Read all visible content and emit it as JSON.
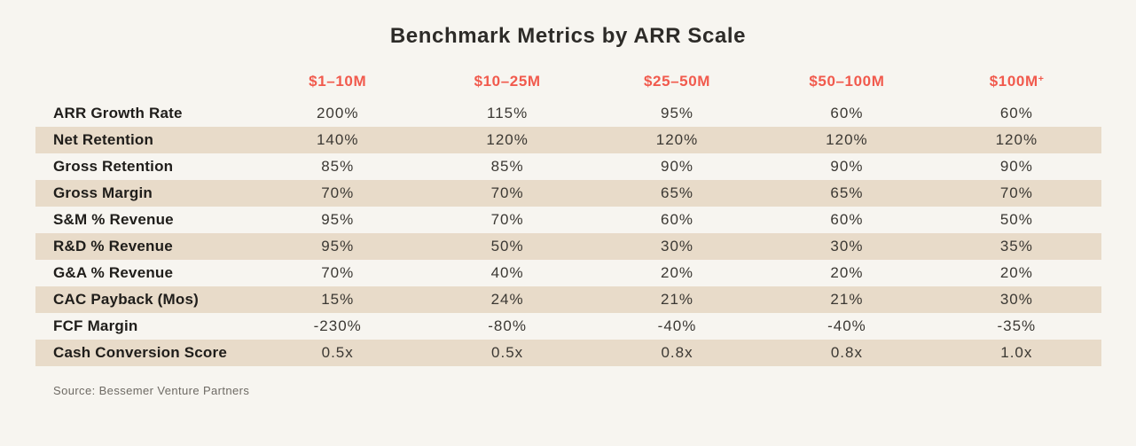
{
  "title": "Benchmark Metrics by ARR Scale",
  "source_note": "Source: Bessemer Venture Partners",
  "colors": {
    "background": "#f7f5f0",
    "row_band": "#e8dbc9",
    "column_header_accent": "#f15a4d",
    "title_text": "#2d2b28",
    "metric_label_text": "#1f1d1a",
    "value_text": "#3b3833",
    "source_text": "#6e6a64"
  },
  "header": {
    "cells": [
      {
        "label": "$1–10M",
        "sup": ""
      },
      {
        "label": "$10–25M",
        "sup": ""
      },
      {
        "label": "$25–50M",
        "sup": ""
      },
      {
        "label": "$50–100M",
        "sup": ""
      },
      {
        "label": "$100M",
        "sup": "+"
      }
    ]
  },
  "chart_data": {
    "type": "table",
    "title": "Benchmark Metrics by ARR Scale",
    "columns": [
      "$1–10M",
      "$10–25M",
      "$25–50M",
      "$50–100M",
      "$100M+"
    ],
    "rows": [
      {
        "metric": "ARR Growth Rate",
        "values": [
          "200%",
          "115%",
          "95%",
          "60%",
          "60%"
        ]
      },
      {
        "metric": "Net Retention",
        "values": [
          "140%",
          "120%",
          "120%",
          "120%",
          "120%"
        ]
      },
      {
        "metric": "Gross Retention",
        "values": [
          "85%",
          "85%",
          "90%",
          "90%",
          "90%"
        ]
      },
      {
        "metric": "Gross Margin",
        "values": [
          "70%",
          "70%",
          "65%",
          "65%",
          "70%"
        ]
      },
      {
        "metric": "S&M % Revenue",
        "values": [
          "95%",
          "70%",
          "60%",
          "60%",
          "50%"
        ]
      },
      {
        "metric": "R&D % Revenue",
        "values": [
          "95%",
          "50%",
          "30%",
          "30%",
          "35%"
        ]
      },
      {
        "metric": "G&A % Revenue",
        "values": [
          "70%",
          "40%",
          "20%",
          "20%",
          "20%"
        ]
      },
      {
        "metric": "CAC Payback (Mos)",
        "values": [
          "15%",
          "24%",
          "21%",
          "21%",
          "30%"
        ]
      },
      {
        "metric": "FCF Margin",
        "values": [
          "-230%",
          "-80%",
          "-40%",
          "-40%",
          "-35%"
        ]
      },
      {
        "metric": "Cash Conversion Score",
        "values": [
          "0.5x",
          "0.5x",
          "0.8x",
          "0.8x",
          "1.0x"
        ]
      }
    ],
    "source": "Source: Bessemer Venture Partners",
    "layout": {
      "striping": "even rows shaded",
      "value_alignment": "center",
      "label_alignment": "left"
    }
  }
}
